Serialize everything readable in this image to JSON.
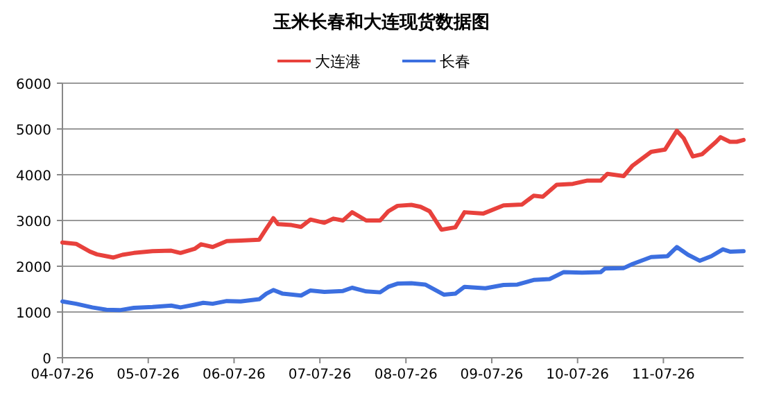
{
  "chart_data": {
    "type": "line",
    "title": "玉米长春和大连现货数据图",
    "legend": "top",
    "grid": "y",
    "xlim": [
      "2004-07-26",
      "2012-07-01"
    ],
    "xticks": [
      {
        "value": "2004-07-26",
        "label": "04-07-26"
      },
      {
        "value": "2005-07-26",
        "label": "05-07-26"
      },
      {
        "value": "2006-07-26",
        "label": "06-07-26"
      },
      {
        "value": "2007-07-26",
        "label": "07-07-26"
      },
      {
        "value": "2008-07-26",
        "label": "08-07-26"
      },
      {
        "value": "2009-07-26",
        "label": "09-07-26"
      },
      {
        "value": "2010-07-26",
        "label": "10-07-26"
      },
      {
        "value": "2011-07-26",
        "label": "11-07-26"
      }
    ],
    "ylim": [
      0,
      6000
    ],
    "yticks": [
      0,
      1000,
      2000,
      3000,
      4000,
      5000,
      6000
    ],
    "series": [
      {
        "name": "大连港",
        "color": "#e8413c",
        "x": [
          "2004-07-26",
          "2004-09-22",
          "2004-11-20",
          "2004-12-20",
          "2005-01-29",
          "2005-02-28",
          "2005-04-07",
          "2005-05-26",
          "2005-08-13",
          "2005-11-01",
          "2005-12-10",
          "2006-02-08",
          "2006-03-08",
          "2006-04-26",
          "2006-06-25",
          "2006-08-23",
          "2006-11-10",
          "2006-12-10",
          "2007-01-09",
          "2007-01-29",
          "2007-03-27",
          "2007-05-07",
          "2007-06-16",
          "2007-08-14",
          "2007-09-22",
          "2007-11-01",
          "2007-12-10",
          "2008-02-08",
          "2008-04-07",
          "2008-05-12",
          "2008-06-20",
          "2008-08-18",
          "2008-09-26",
          "2008-11-04",
          "2008-12-24",
          "2009-02-21",
          "2009-04-01",
          "2009-06-19",
          "2009-09-14",
          "2009-12-02",
          "2010-01-20",
          "2010-02-28",
          "2010-04-28",
          "2010-07-06",
          "2010-09-03",
          "2010-11-01",
          "2010-11-30",
          "2011-02-07",
          "2011-03-17",
          "2011-06-04",
          "2011-08-02",
          "2011-09-21",
          "2011-10-20",
          "2011-11-28",
          "2012-01-07",
          "2012-03-06",
          "2012-03-25",
          "2012-05-04",
          "2012-06-02",
          "2012-07-01"
        ],
        "values": [
          2520,
          2490,
          2320,
          2260,
          2220,
          2190,
          2250,
          2290,
          2330,
          2340,
          2290,
          2380,
          2480,
          2420,
          2550,
          2560,
          2580,
          2820,
          3050,
          2920,
          2900,
          2860,
          3020,
          2950,
          3040,
          3000,
          3180,
          3000,
          3000,
          3200,
          3320,
          3340,
          3300,
          3200,
          2800,
          2850,
          3180,
          3150,
          3330,
          3350,
          3540,
          3520,
          3780,
          3800,
          3870,
          3870,
          4020,
          3970,
          4200,
          4500,
          4550,
          4960,
          4800,
          4400,
          4450,
          4720,
          4820,
          4720,
          4720,
          4760
        ]
      },
      {
        "name": "长春",
        "color": "#3c6fe0",
        "x": [
          "2004-07-26",
          "2004-09-22",
          "2004-11-30",
          "2005-01-29",
          "2005-03-27",
          "2005-05-26",
          "2005-08-13",
          "2005-11-01",
          "2005-12-10",
          "2006-02-08",
          "2006-03-17",
          "2006-04-26",
          "2006-06-25",
          "2006-08-23",
          "2006-11-10",
          "2006-12-10",
          "2007-01-09",
          "2007-02-18",
          "2007-05-07",
          "2007-06-16",
          "2007-08-14",
          "2007-11-01",
          "2007-12-10",
          "2008-02-08",
          "2008-04-07",
          "2008-05-12",
          "2008-06-20",
          "2008-08-18",
          "2008-10-16",
          "2009-01-03",
          "2009-02-21",
          "2009-04-01",
          "2009-06-29",
          "2009-09-14",
          "2009-11-12",
          "2010-01-20",
          "2010-03-29",
          "2010-05-27",
          "2010-08-14",
          "2010-11-01",
          "2010-11-20",
          "2011-02-07",
          "2011-03-17",
          "2011-06-04",
          "2011-08-12",
          "2011-09-21",
          "2011-11-08",
          "2011-12-28",
          "2012-02-15",
          "2012-04-04",
          "2012-05-04",
          "2012-07-01"
        ],
        "values": [
          1230,
          1180,
          1100,
          1050,
          1040,
          1090,
          1110,
          1140,
          1100,
          1160,
          1200,
          1180,
          1240,
          1230,
          1280,
          1400,
          1480,
          1400,
          1360,
          1470,
          1440,
          1460,
          1530,
          1450,
          1430,
          1550,
          1620,
          1630,
          1600,
          1380,
          1400,
          1550,
          1520,
          1590,
          1600,
          1700,
          1720,
          1870,
          1860,
          1870,
          1950,
          1960,
          2050,
          2200,
          2220,
          2420,
          2250,
          2120,
          2220,
          2370,
          2320,
          2330
        ]
      }
    ]
  }
}
